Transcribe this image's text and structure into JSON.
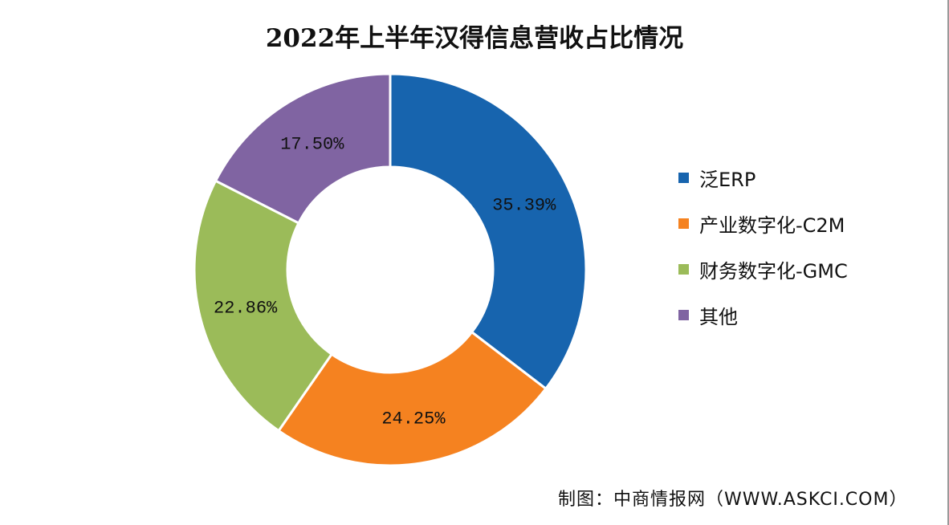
{
  "chart_data": {
    "type": "pie",
    "subtype": "donut",
    "title": "2022年上半年汉得信息营收占比情况",
    "categories": [
      "泛ERP",
      "产业数字化-C2M",
      "财务数字化-GMC",
      "其他"
    ],
    "values": [
      35.39,
      24.25,
      22.86,
      17.5
    ],
    "data_labels": [
      "35.39%",
      "24.25%",
      "22.86%",
      "17.50%"
    ],
    "colors": [
      "#1764ae",
      "#f58220",
      "#9bbb59",
      "#8064a2"
    ],
    "legend_position": "right"
  },
  "source": "制图：中商情报网（WWW.ASKCI.COM）"
}
